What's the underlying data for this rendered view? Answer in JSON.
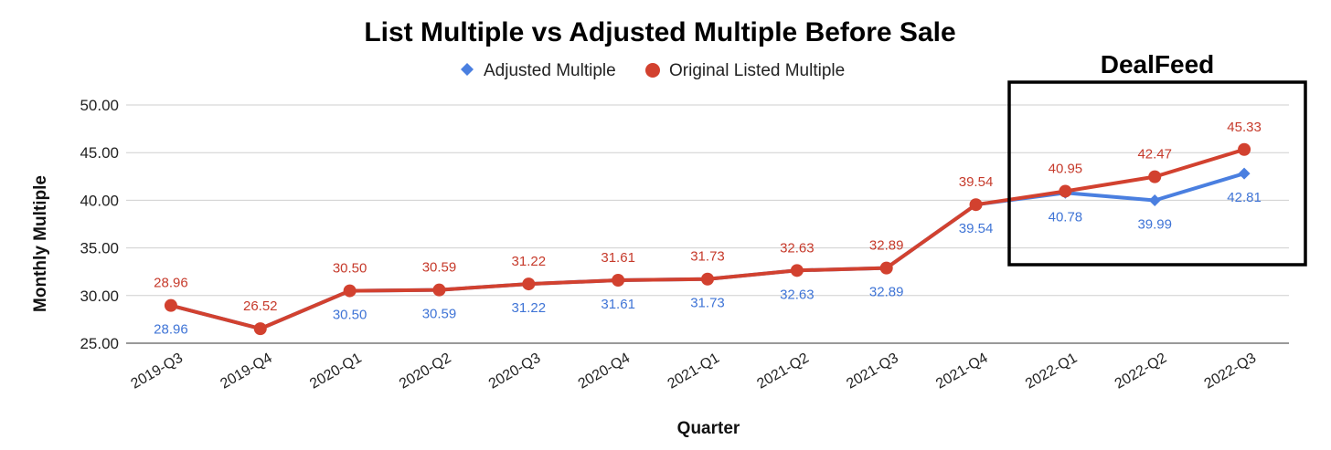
{
  "chart_data": {
    "type": "line",
    "title": "List Multiple vs Adjusted Multiple Before Sale",
    "xlabel": "Quarter",
    "ylabel": "Monthly Multiple",
    "categories": [
      "2019-Q3",
      "2019-Q4",
      "2020-Q1",
      "2020-Q2",
      "2020-Q3",
      "2020-Q4",
      "2021-Q1",
      "2021-Q2",
      "2021-Q3",
      "2021-Q4",
      "2022-Q1",
      "2022-Q2",
      "2022-Q3"
    ],
    "ylim": [
      25,
      50
    ],
    "yticks": [
      "25.00",
      "30.00",
      "35.00",
      "40.00",
      "45.00",
      "50.00"
    ],
    "grid": true,
    "legend_position": "top-center",
    "series": [
      {
        "name": "Adjusted Multiple",
        "color": "#4a7fe0",
        "marker": "diamond",
        "values": [
          28.96,
          26.52,
          30.5,
          30.59,
          31.22,
          31.61,
          31.73,
          32.63,
          32.89,
          39.54,
          40.78,
          39.99,
          42.81
        ],
        "labels": [
          "28.96",
          null,
          "30.50",
          "30.59",
          "31.22",
          "31.61",
          "31.73",
          "32.63",
          "32.89",
          "39.54",
          "40.78",
          "39.99",
          "42.81"
        ]
      },
      {
        "name": "Original Listed Multiple",
        "color": "#d2412f",
        "marker": "circle",
        "values": [
          28.96,
          26.52,
          30.5,
          30.59,
          31.22,
          31.61,
          31.73,
          32.63,
          32.89,
          39.54,
          40.95,
          42.47,
          45.33
        ],
        "labels": [
          "28.96",
          "26.52",
          "30.50",
          "30.59",
          "31.22",
          "31.61",
          "31.73",
          "32.63",
          "32.89",
          "39.54",
          "40.95",
          "42.47",
          "45.33"
        ]
      }
    ],
    "annotation": {
      "text": "DealFeed",
      "box_around": [
        "2022-Q1",
        "2022-Q2",
        "2022-Q3"
      ]
    }
  }
}
